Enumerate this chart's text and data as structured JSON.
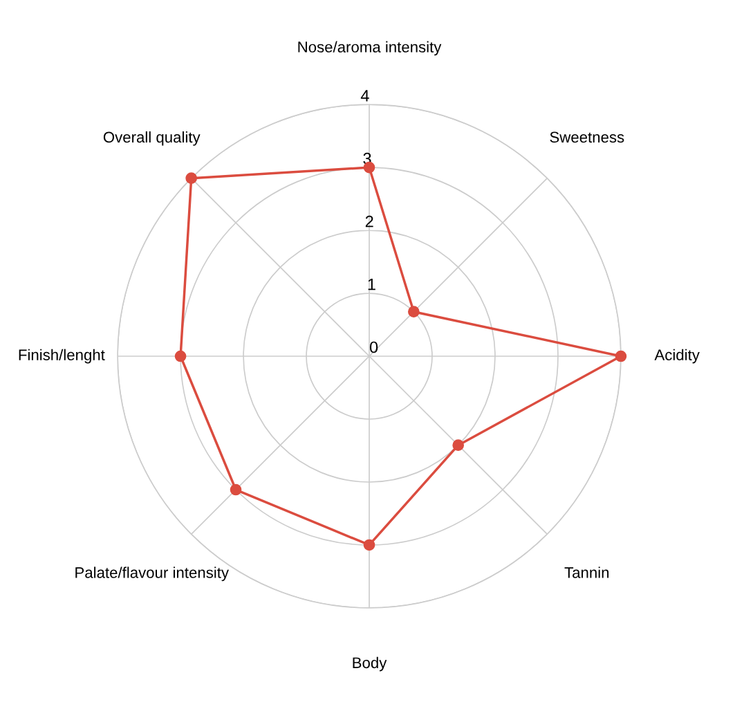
{
  "chart_data": {
    "type": "radar",
    "categories": [
      "Nose/aroma intensity",
      "Sweetness",
      "Acidity",
      "Tannin",
      "Body",
      "Palate/flavour intensity",
      "Finish/lenght",
      "Overall quality"
    ],
    "series": [
      {
        "color": "#db4c3f",
        "values": [
          3,
          1,
          4,
          2,
          3,
          3,
          3,
          4
        ]
      }
    ],
    "ylim": [
      0,
      4
    ],
    "yticks": [
      0,
      1,
      2,
      3,
      4
    ],
    "grid": true,
    "marker": "circle",
    "line_style": "solid"
  }
}
